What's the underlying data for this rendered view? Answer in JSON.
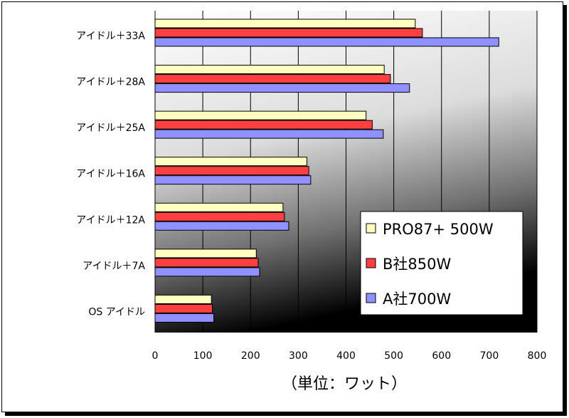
{
  "chart_data": {
    "type": "bar",
    "orientation": "horizontal",
    "categories": [
      "アイドル＋33A",
      "アイドル＋28A",
      "アイドル＋25A",
      "アイドル＋16A",
      "アイドル＋12A",
      "アイドル＋7A",
      "OS アイドル"
    ],
    "series": [
      {
        "name": "PRO87+ 500W",
        "color": "#ffffc0",
        "values": [
          545,
          480,
          442,
          318,
          268,
          212,
          118
        ]
      },
      {
        "name": "B社850W",
        "color": "#ff4040",
        "values": [
          560,
          493,
          455,
          322,
          271,
          216,
          120
        ]
      },
      {
        "name": "A社700W",
        "color": "#9090ff",
        "values": [
          720,
          533,
          478,
          326,
          280,
          219,
          123
        ]
      }
    ],
    "xlim": [
      0,
      800
    ],
    "xticks": [
      0,
      100,
      200,
      300,
      400,
      500,
      600,
      700,
      800
    ],
    "xlabel": "（単位：ワット）",
    "ylabel": "",
    "title": "",
    "grid": "vertical",
    "legend_position": "bottom-right",
    "background": "gradient white-to-black"
  }
}
